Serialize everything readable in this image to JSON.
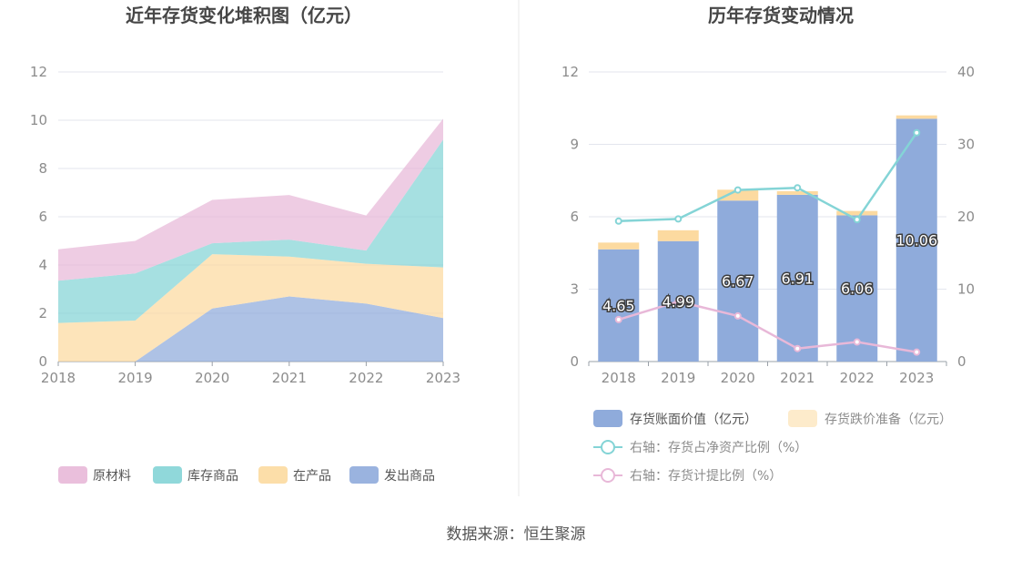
{
  "source_text": "数据来源：恒生聚源",
  "chart_data": [
    {
      "type": "area",
      "stacked": true,
      "title": "近年存货变化堆积图（亿元）",
      "categories": [
        "2018",
        "2019",
        "2020",
        "2021",
        "2022",
        "2023"
      ],
      "y_ticks": [
        "0",
        "2",
        "4",
        "6",
        "8",
        "10",
        "12"
      ],
      "ylim": [
        0,
        12
      ],
      "grid": true,
      "legend_position": "bottom",
      "series": [
        {
          "name": "发出商品",
          "color": "#8fabdb",
          "values": [
            0.0,
            0.0,
            2.2,
            2.7,
            2.4,
            1.8
          ]
        },
        {
          "name": "在产品",
          "color": "#fcdaa0",
          "values": [
            1.6,
            1.7,
            2.25,
            1.65,
            1.65,
            2.1
          ]
        },
        {
          "name": "库存商品",
          "color": "#84d4d6",
          "values": [
            1.75,
            1.95,
            0.45,
            0.7,
            0.55,
            5.3
          ]
        },
        {
          "name": "原材料",
          "color": "#e8b8d8",
          "values": [
            1.3,
            1.35,
            1.8,
            1.85,
            1.45,
            0.86
          ]
        }
      ],
      "legend_order": [
        "原材料",
        "库存商品",
        "在产品",
        "发出商品"
      ]
    },
    {
      "type": "bar",
      "stacked": true,
      "title": "历年存货变动情况",
      "categories": [
        "2018",
        "2019",
        "2020",
        "2021",
        "2022",
        "2023"
      ],
      "y_ticks": [
        "0",
        "3",
        "6",
        "9",
        "12"
      ],
      "ylim": [
        0,
        12
      ],
      "y2_ticks": [
        "0",
        "10",
        "20",
        "30",
        "40"
      ],
      "y2lim": [
        0,
        40
      ],
      "grid": true,
      "legend_position": "bottom",
      "bar_series": [
        {
          "name": "存货账面价值（亿元）",
          "color": "#8fabdb",
          "values": [
            4.65,
            4.99,
            6.67,
            6.91,
            6.06,
            10.06
          ],
          "labels": [
            "4.65",
            "4.99",
            "6.67",
            "6.91",
            "6.06",
            "10.06"
          ]
        },
        {
          "name": "存货跌价准备（亿元）",
          "color": "#fcdaa0",
          "values": [
            0.28,
            0.45,
            0.45,
            0.15,
            0.18,
            0.14
          ]
        }
      ],
      "line_series": [
        {
          "name": "右轴：存货占净资产比例（%）",
          "color": "#84d4d6",
          "axis": "right",
          "values": [
            19.4,
            19.7,
            23.7,
            24.0,
            19.6,
            31.6
          ]
        },
        {
          "name": "右轴：存货计提比例（%）",
          "color": "#e8b8d8",
          "axis": "right",
          "values": [
            5.8,
            8.3,
            6.3,
            1.8,
            2.7,
            1.3
          ]
        }
      ]
    }
  ]
}
